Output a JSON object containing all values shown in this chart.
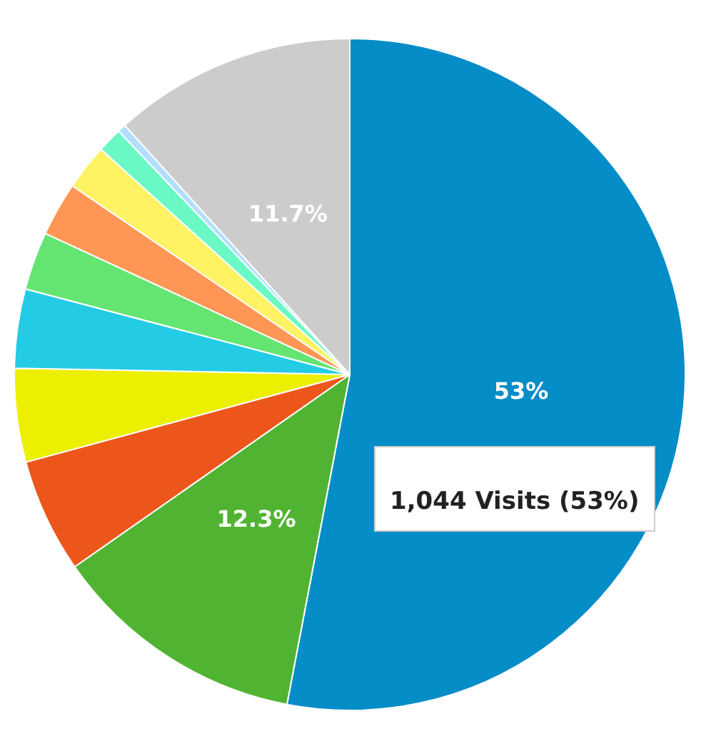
{
  "chart_data": {
    "type": "pie",
    "categories": [
      null,
      null,
      null,
      null,
      null,
      null,
      null,
      null,
      null,
      null,
      null
    ],
    "values": [
      53,
      12.3,
      5.5,
      4.5,
      3.8,
      2.8,
      2.6,
      2.2,
      1.2,
      0.4,
      11.7
    ],
    "colors": [
      "#058dc7",
      "#50b432",
      "#ed561b",
      "#edef00",
      "#24cbe5",
      "#64e572",
      "#ff9655",
      "#fff263",
      "#6af9c4",
      "#b2deff",
      "#cccccc"
    ],
    "value_labels": [
      "53%",
      "12.3%",
      null,
      null,
      null,
      null,
      null,
      null,
      null,
      null,
      "11.7%"
    ],
    "annotations": [
      "1,044 Visits (53%)"
    ],
    "legend": false
  }
}
